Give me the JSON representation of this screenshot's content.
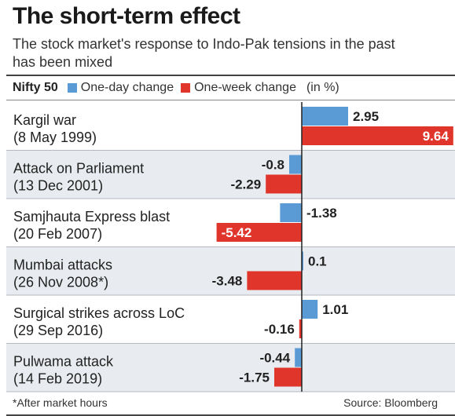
{
  "title": "The short-term effect",
  "subtitle": "The stock market's response to Indo-Pak tensions in the past has been mixed",
  "legend": {
    "index_label": "Nifty 50",
    "unit": "(in %)"
  },
  "footnote": "*After market hours",
  "source": "Source: Bloomberg",
  "chart_data": {
    "type": "bar",
    "orientation": "horizontal",
    "categories": [
      [
        "Kargil war",
        "(8 May 1999)"
      ],
      [
        "Attack on Parliament",
        "(13 Dec 2001)"
      ],
      [
        "Samjhauta Express blast",
        "(20 Feb 2007)"
      ],
      [
        "Mumbai attacks",
        "(26 Nov 2008*)"
      ],
      [
        "Surgical strikes across LoC",
        "(29 Sep 2016)"
      ],
      [
        "Pulwama attack",
        "(14 Feb 2019)"
      ]
    ],
    "series": [
      {
        "name": "One-day change",
        "color": "#5b9bd5",
        "values": [
          2.95,
          -0.8,
          -1.38,
          0.1,
          1.01,
          -0.44
        ],
        "labels": [
          "2.95",
          "-0.8",
          "-1.38",
          "0.1",
          "1.01",
          "-0.44"
        ]
      },
      {
        "name": "One-week change",
        "color": "#e0352b",
        "values": [
          9.64,
          -2.29,
          -5.42,
          -3.48,
          -0.16,
          -1.75
        ],
        "labels": [
          "9.64",
          "-2.29",
          "-5.42",
          "-3.48",
          "-0.16",
          "-1.75"
        ]
      }
    ],
    "row_shading": [
      "#ffffff",
      "#e8ebef"
    ],
    "xlabel": "",
    "ylabel": ""
  }
}
